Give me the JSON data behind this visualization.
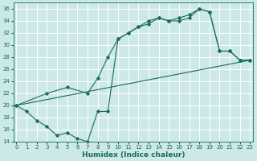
{
  "xlabel": "Humidex (Indice chaleur)",
  "bg_color": "#cce8e8",
  "line_color": "#1a6b5a",
  "grid_color": "#b8d8d8",
  "line1_x": [
    0,
    1,
    2,
    3,
    4,
    5,
    6,
    7,
    8,
    9,
    10,
    11,
    12,
    13,
    14,
    15,
    16,
    17,
    18,
    19,
    20,
    21,
    22,
    23
  ],
  "line1_y": [
    20,
    19,
    17.5,
    16.5,
    15,
    15.5,
    14.5,
    14,
    19,
    19,
    31,
    32,
    33,
    33.5,
    34.5,
    34,
    34,
    34.5,
    36,
    35.5,
    29,
    29,
    27.5,
    27.5
  ],
  "line2_x": [
    0,
    3,
    5,
    7,
    8,
    9,
    10,
    11,
    12,
    13,
    14,
    15,
    16,
    17,
    18,
    19,
    20,
    21,
    22,
    23
  ],
  "line2_y": [
    20,
    22,
    23,
    22,
    24.5,
    28,
    31,
    32,
    33,
    34,
    34.5,
    34,
    34.5,
    35,
    36,
    35.5,
    29,
    29,
    27.5,
    27.5
  ],
  "line3_x": [
    0,
    23
  ],
  "line3_y": [
    20,
    27.5
  ],
  "xlim": [
    -0.3,
    23.3
  ],
  "ylim": [
    14,
    37
  ],
  "yticks": [
    14,
    16,
    18,
    20,
    22,
    24,
    26,
    28,
    30,
    32,
    34,
    36
  ],
  "xticks": [
    0,
    1,
    2,
    3,
    4,
    5,
    6,
    7,
    8,
    9,
    10,
    11,
    12,
    13,
    14,
    15,
    16,
    17,
    18,
    19,
    20,
    21,
    22,
    23
  ],
  "tick_fontsize": 5,
  "xlabel_fontsize": 6.5
}
